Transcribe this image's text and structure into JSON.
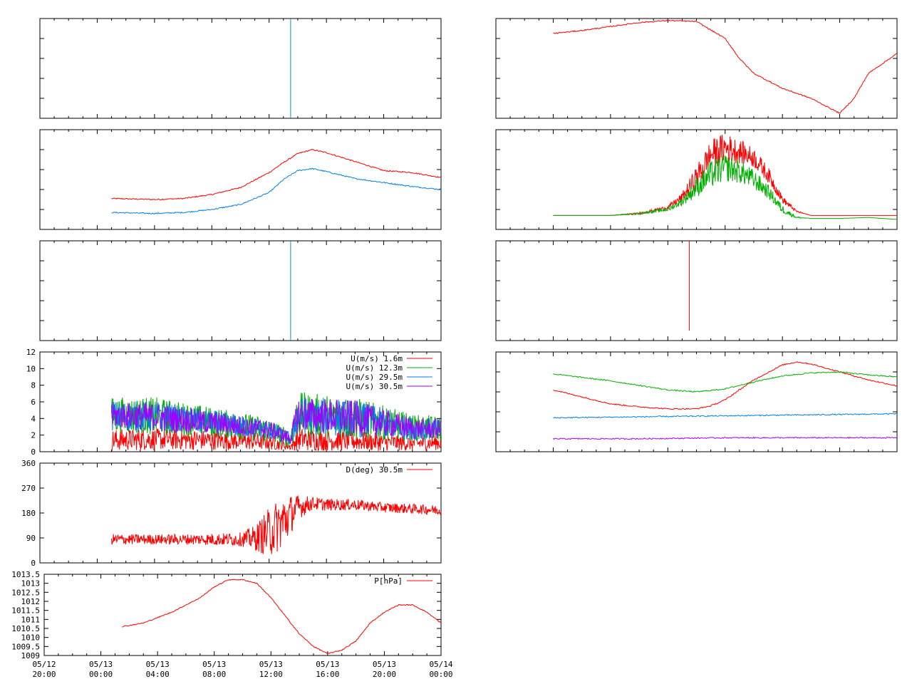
{
  "x_axis": {
    "ticks": [
      {
        "date": "05/12",
        "time": "20:00",
        "t": 0
      },
      {
        "date": "05/13",
        "time": "00:00",
        "t": 4
      },
      {
        "date": "05/13",
        "time": "04:00",
        "t": 8
      },
      {
        "date": "05/13",
        "time": "08:00",
        "t": 12
      },
      {
        "date": "05/13",
        "time": "12:00",
        "t": 16
      },
      {
        "date": "05/13",
        "time": "16:00",
        "t": 20
      },
      {
        "date": "05/13",
        "time": "20:00",
        "t": 24
      },
      {
        "date": "05/14",
        "time": "00:00",
        "t": 28
      }
    ],
    "range_hours_since_0512_2000": [
      0,
      28
    ]
  },
  "colors": {
    "red": "#ff0000",
    "green": "#00b000",
    "blue": "#0080e0",
    "purple": "#a000ff",
    "teal": "#009090"
  },
  "chart_data": [
    {
      "id": "left-1",
      "type": "line",
      "series": [
        {
          "color": "#0090c0",
          "x": [
            17.5,
            17.5
          ],
          "y": [
            0,
            1
          ],
          "note": "vertical line spike"
        }
      ],
      "ylim": [
        0,
        1
      ],
      "y_ticks_labeled": false,
      "x_ticks_labeled": false
    },
    {
      "id": "left-2",
      "type": "line",
      "series": [
        {
          "color": "#ff0000",
          "x": [
            5,
            8,
            10,
            12,
            14,
            16,
            17,
            18,
            19,
            20,
            22,
            24,
            26,
            28
          ],
          "y": [
            0.31,
            0.3,
            0.31,
            0.35,
            0.42,
            0.57,
            0.67,
            0.76,
            0.8,
            0.77,
            0.68,
            0.59,
            0.57,
            0.52
          ]
        },
        {
          "color": "#0080e0",
          "x": [
            5,
            8,
            10,
            12,
            14,
            16,
            17,
            18,
            19,
            20,
            22,
            24,
            26,
            28
          ],
          "y": [
            0.17,
            0.16,
            0.17,
            0.2,
            0.25,
            0.37,
            0.5,
            0.59,
            0.61,
            0.58,
            0.51,
            0.47,
            0.43,
            0.4
          ]
        }
      ],
      "ylim": [
        0,
        1
      ],
      "y_ticks_labeled": false,
      "x_ticks_labeled": false
    },
    {
      "id": "left-3",
      "type": "line",
      "series": [
        {
          "color": "#0090c0",
          "x": [
            17.5,
            17.5
          ],
          "y": [
            0,
            1
          ]
        }
      ],
      "ylim": [
        0,
        1
      ],
      "y_ticks_labeled": false,
      "x_ticks_labeled": false
    },
    {
      "id": "left-4",
      "type": "line",
      "ylim": [
        0,
        12
      ],
      "y_ticks": [
        "0",
        "2",
        "4",
        "6",
        "8",
        "10",
        "12"
      ],
      "legend": [
        {
          "label": "U(m/s)  1.6m",
          "color": "#ff0000"
        },
        {
          "label": "U(m/s) 12.3m",
          "color": "#00b000"
        },
        {
          "label": "U(m/s) 29.5m",
          "color": "#0080e0"
        },
        {
          "label": "U(m/s) 30.5m",
          "color": "#a000ff"
        }
      ],
      "series": [
        {
          "name": "U(m/s)  1.6m",
          "color": "#ff0000",
          "x": [
            5,
            8,
            12,
            16,
            17.5,
            18,
            22,
            26,
            28
          ],
          "mean": [
            1.4,
            1.5,
            1.4,
            1.2,
            0.6,
            1.5,
            1.3,
            1.0,
            1.1
          ],
          "noise": [
            1.3,
            1.3,
            1.2,
            1.0,
            0.4,
            1.4,
            1.2,
            0.9,
            0.9
          ]
        },
        {
          "name": "U(m/s) 12.3m",
          "color": "#00b000",
          "x": [
            5,
            8,
            12,
            16,
            17.5,
            18,
            22,
            26,
            28
          ],
          "mean": [
            4.4,
            4.3,
            3.6,
            2.6,
            1.5,
            4.5,
            4.0,
            2.9,
            2.8
          ],
          "noise": [
            2.2,
            2.3,
            1.8,
            1.5,
            1.0,
            2.7,
            2.6,
            1.6,
            1.5
          ]
        },
        {
          "name": "U(m/s) 29.5m",
          "color": "#0080e0",
          "x": [
            5,
            8,
            12,
            16,
            17.5,
            18,
            22,
            26,
            28
          ],
          "mean": [
            4.3,
            4.2,
            3.5,
            2.6,
            1.5,
            4.4,
            4.0,
            2.8,
            2.7
          ],
          "noise": [
            1.8,
            1.9,
            1.5,
            1.2,
            0.8,
            2.3,
            2.3,
            1.4,
            1.3
          ]
        },
        {
          "name": "U(m/s) 30.5m",
          "color": "#a000ff",
          "x": [
            5,
            8,
            12,
            16,
            17.5,
            18,
            22,
            26,
            28
          ],
          "mean": [
            4.4,
            4.2,
            3.5,
            2.7,
            1.6,
            4.5,
            4.1,
            2.8,
            2.7
          ],
          "noise": [
            1.6,
            1.7,
            1.4,
            1.1,
            0.7,
            2.1,
            2.1,
            1.3,
            1.2
          ]
        }
      ]
    },
    {
      "id": "left-5",
      "type": "line",
      "ylim": [
        0,
        360
      ],
      "y_ticks": [
        "0",
        "90",
        "180",
        "270",
        "360"
      ],
      "legend": [
        {
          "label": "D(deg)  30.5m",
          "color": "#ff0000"
        }
      ],
      "series": [
        {
          "name": "D(deg)  30.5m",
          "color": "#ff0000",
          "x": [
            5,
            8,
            11,
            14,
            15,
            16,
            17,
            18,
            19,
            20,
            22,
            24,
            26,
            28
          ],
          "mean": [
            85,
            85,
            85,
            85,
            90,
            110,
            150,
            200,
            215,
            210,
            210,
            200,
            195,
            190
          ],
          "noise": [
            20,
            18,
            20,
            25,
            45,
            90,
            100,
            45,
            25,
            22,
            20,
            18,
            18,
            18
          ]
        }
      ]
    },
    {
      "id": "left-6",
      "type": "line",
      "ylim": [
        1009,
        1013.5
      ],
      "y_ticks": [
        "1009",
        "1009.5",
        "1010",
        "1010.5",
        "1011",
        "1011.5",
        "1012",
        "1012.5",
        "1013",
        "1013.5"
      ],
      "legend": [
        {
          "label": "P[hPa]",
          "color": "#ff0000"
        }
      ],
      "x_ticks_labeled": true,
      "series": [
        {
          "name": "P[hPa]",
          "color": "#ff0000",
          "x": [
            5.5,
            7,
            9,
            10,
            11,
            12,
            13,
            14,
            15,
            16,
            17,
            18,
            19,
            20,
            21,
            22,
            23,
            24,
            25,
            26,
            27,
            28
          ],
          "y": [
            1010.6,
            1010.8,
            1011.4,
            1011.8,
            1012.2,
            1012.8,
            1013.2,
            1013.2,
            1013.0,
            1012.2,
            1011.2,
            1010.2,
            1009.5,
            1009.1,
            1009.3,
            1009.8,
            1010.8,
            1011.4,
            1011.8,
            1011.8,
            1011.4,
            1010.8
          ]
        }
      ]
    },
    {
      "id": "right-1",
      "type": "line",
      "series": [
        {
          "color": "#ff0000",
          "x": [
            4,
            6,
            8,
            10,
            12,
            14,
            16,
            17,
            18,
            20,
            22,
            24,
            25,
            26,
            28
          ],
          "y": [
            0.85,
            0.88,
            0.92,
            0.96,
            0.98,
            0.97,
            0.8,
            0.6,
            0.45,
            0.3,
            0.2,
            0.05,
            0.2,
            0.45,
            0.65
          ]
        }
      ],
      "ylim": [
        0,
        1
      ],
      "y_ticks_labeled": false,
      "x_ticks_labeled": false
    },
    {
      "id": "right-2",
      "type": "line",
      "series": [
        {
          "color": "#ff0000",
          "x": [
            4,
            8,
            10,
            12,
            13,
            14,
            15,
            16,
            17,
            18,
            19,
            20,
            21,
            22,
            24,
            26,
            28
          ],
          "mean": [
            0.14,
            0.14,
            0.16,
            0.22,
            0.32,
            0.52,
            0.75,
            0.82,
            0.78,
            0.72,
            0.55,
            0.3,
            0.18,
            0.14,
            0.14,
            0.14,
            0.14
          ],
          "noise": [
            0,
            0,
            0.01,
            0.02,
            0.05,
            0.12,
            0.15,
            0.15,
            0.12,
            0.1,
            0.08,
            0.04,
            0.01,
            0,
            0,
            0,
            0
          ]
        },
        {
          "color": "#00b000",
          "x": [
            4,
            8,
            10,
            12,
            13,
            14,
            15,
            16,
            17,
            18,
            19,
            20,
            21,
            22,
            24,
            26,
            28
          ],
          "mean": [
            0.14,
            0.14,
            0.16,
            0.2,
            0.28,
            0.42,
            0.55,
            0.62,
            0.58,
            0.5,
            0.38,
            0.2,
            0.12,
            0.11,
            0.11,
            0.12,
            0.1
          ],
          "noise": [
            0,
            0,
            0.01,
            0.02,
            0.04,
            0.1,
            0.14,
            0.14,
            0.12,
            0.1,
            0.07,
            0.04,
            0.01,
            0,
            0,
            0,
            0
          ]
        }
      ],
      "ylim": [
        0,
        1
      ],
      "y_ticks_labeled": false,
      "x_ticks_labeled": false
    },
    {
      "id": "right-3",
      "type": "line",
      "series": [
        {
          "color": "#ff0000",
          "x": [
            13.5,
            13.5
          ],
          "y": [
            0.1,
            1
          ]
        }
      ],
      "ylim": [
        0,
        1
      ],
      "y_ticks_labeled": false,
      "x_ticks_labeled": false
    },
    {
      "id": "right-4",
      "type": "line",
      "series": [
        {
          "color": "#ff0000",
          "x": [
            4,
            6,
            8,
            10,
            12,
            14,
            15,
            16,
            17,
            18,
            20,
            21,
            22,
            24,
            26,
            28
          ],
          "y": [
            0.62,
            0.55,
            0.48,
            0.45,
            0.43,
            0.43,
            0.46,
            0.52,
            0.62,
            0.72,
            0.87,
            0.9,
            0.88,
            0.8,
            0.72,
            0.66
          ]
        },
        {
          "color": "#00b000",
          "x": [
            4,
            8,
            12,
            14,
            16,
            18,
            20,
            22,
            24,
            26,
            28
          ],
          "y": [
            0.78,
            0.71,
            0.62,
            0.6,
            0.63,
            0.7,
            0.76,
            0.79,
            0.8,
            0.77,
            0.75
          ]
        },
        {
          "color": "#0080e0",
          "x": [
            4,
            10,
            16,
            22,
            28
          ],
          "y": [
            0.34,
            0.35,
            0.36,
            0.37,
            0.38
          ]
        },
        {
          "color": "#a000ff",
          "x": [
            4,
            10,
            16,
            22,
            28
          ],
          "y": [
            0.13,
            0.13,
            0.14,
            0.14,
            0.14
          ]
        }
      ],
      "ylim": [
        0,
        1
      ],
      "y_ticks_labeled": false,
      "x_ticks_labeled": false
    }
  ]
}
